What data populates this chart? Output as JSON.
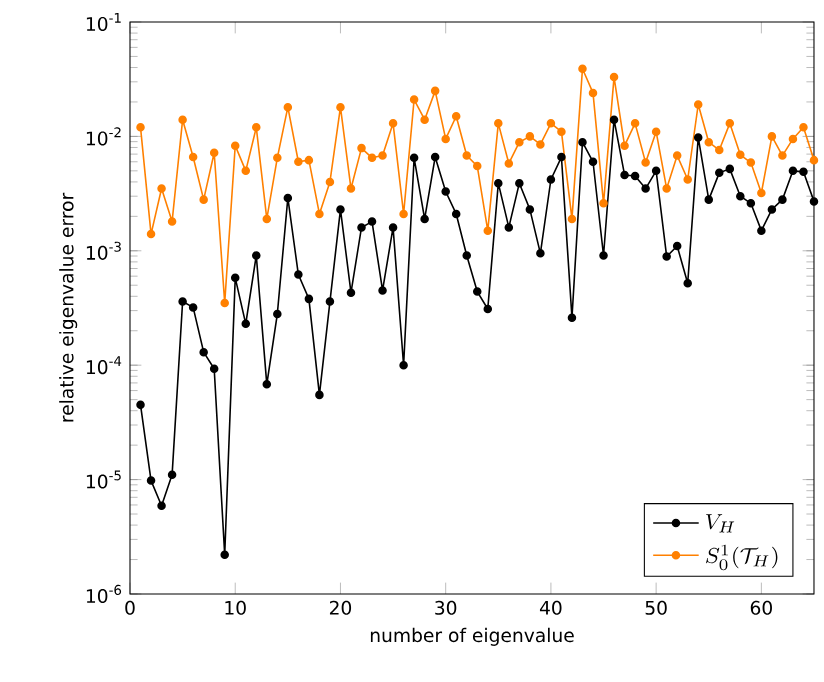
{
  "chart_data": {
    "type": "line",
    "xlabel": "number of eigenvalue",
    "ylabel": "relative eigenvalue error",
    "x": [
      1,
      2,
      3,
      4,
      5,
      6,
      7,
      8,
      9,
      10,
      11,
      12,
      13,
      14,
      15,
      16,
      17,
      18,
      19,
      20,
      21,
      22,
      23,
      24,
      25,
      26,
      27,
      28,
      29,
      30,
      31,
      32,
      33,
      34,
      35,
      36,
      37,
      38,
      39,
      40,
      41,
      42,
      43,
      44,
      45,
      46,
      47,
      48,
      49,
      50,
      51,
      52,
      53,
      54,
      55,
      56,
      57,
      58,
      59,
      60,
      61,
      62,
      63,
      64,
      65
    ],
    "series": [
      {
        "name": "V_H",
        "color": "#000000",
        "values": [
          4.5e-05,
          9.8e-06,
          5.9e-06,
          1.1e-05,
          0.00036,
          0.00032,
          0.00013,
          9.3e-05,
          2.2e-06,
          0.00058,
          0.00023,
          0.00091,
          6.8e-05,
          0.00028,
          0.0029,
          0.00062,
          0.00038,
          5.5e-05,
          0.00036,
          0.0023,
          0.00043,
          0.0016,
          0.0018,
          0.00045,
          0.0016,
          0.0001,
          0.0065,
          0.0019,
          0.0066,
          0.0033,
          0.0021,
          0.00091,
          0.00044,
          0.00031,
          0.0039,
          0.0016,
          0.0039,
          0.0023,
          0.00095,
          0.0042,
          0.0066,
          0.00026,
          0.0089,
          0.006,
          0.00091,
          0.014,
          0.0046,
          0.0045,
          0.0035,
          0.005,
          0.00089,
          0.0011,
          0.00052,
          0.0098,
          0.0028,
          0.0048,
          0.0052,
          0.003,
          0.0026,
          0.0015,
          0.0023,
          0.0028,
          0.005,
          0.0049,
          0.0027
        ]
      },
      {
        "name": "S_0^1(\\mathcal{T}_H)",
        "color": "#ff8000",
        "values": [
          0.012,
          0.0014,
          0.0035,
          0.0018,
          0.014,
          0.0066,
          0.0028,
          0.0072,
          0.00035,
          0.0083,
          0.005,
          0.012,
          0.0019,
          0.0065,
          0.018,
          0.006,
          0.0062,
          0.0021,
          0.004,
          0.018,
          0.0035,
          0.0079,
          0.0065,
          0.0068,
          0.013,
          0.0021,
          0.021,
          0.014,
          0.025,
          0.0095,
          0.015,
          0.0068,
          0.0055,
          0.0015,
          0.013,
          0.0058,
          0.0089,
          0.01,
          0.0085,
          0.013,
          0.011,
          0.0019,
          0.039,
          0.024,
          0.0026,
          0.033,
          0.0083,
          0.013,
          0.0059,
          0.011,
          0.0035,
          0.0068,
          0.0042,
          0.019,
          0.0089,
          0.0076,
          0.013,
          0.0069,
          0.0059,
          0.0032,
          0.01,
          0.0068,
          0.0095,
          0.012,
          0.0062
        ]
      }
    ],
    "xlim": [
      0,
      65
    ],
    "xticks": [
      0,
      10,
      20,
      30,
      40,
      50,
      60
    ],
    "ylim": [
      1e-06,
      0.1
    ],
    "yticks": [
      {
        "value": 1e-06,
        "label": "10$^{-6}$"
      },
      {
        "value": 1e-05,
        "label": "10$^{-5}$"
      },
      {
        "value": 0.0001,
        "label": "10$^{-4}$"
      },
      {
        "value": 0.001,
        "label": "10$^{-3}$"
      },
      {
        "value": 0.01,
        "label": "10$^{-2}$"
      },
      {
        "value": 0.1,
        "label": "10$^{-1}$"
      }
    ],
    "log": "y",
    "grid": false,
    "legend": "bottom right",
    "marker": "circle",
    "line_style": "solid"
  }
}
